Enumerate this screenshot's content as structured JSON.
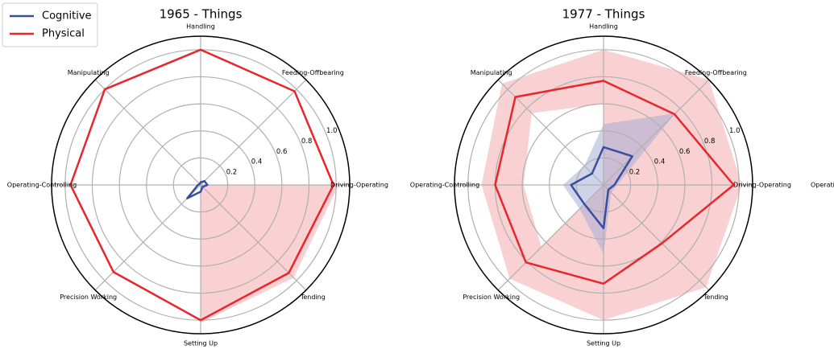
{
  "chart_data": [
    {
      "type": "radar",
      "title": "1965 - Things",
      "categories": [
        "Driving-Operating",
        "Feeding-Offbearing",
        "Handling",
        "Manipulating",
        "Operating-Controlling",
        "Precision Working",
        "Setting Up",
        "Tending"
      ],
      "series": [
        {
          "name": "Cognitive",
          "color": "#3a4ea0",
          "values": [
            0.05,
            0.04,
            0.02,
            0.01,
            0.02,
            0.14,
            0.05,
            0.02
          ]
        },
        {
          "name": "Physical",
          "color": "#e8262b",
          "values": [
            0.98,
            0.98,
            1.0,
            1.0,
            0.96,
            0.91,
            1.0,
            0.92
          ]
        }
      ],
      "bands": [
        {
          "color": "#f4a3a5",
          "upper": [
            1.02,
            null,
            null,
            null,
            null,
            null,
            1.02,
            0.97
          ],
          "lower": [
            0,
            null,
            null,
            null,
            null,
            null,
            0,
            0
          ]
        }
      ],
      "ylim": [
        0,
        1.1
      ],
      "yticks": [
        0.2,
        0.4,
        0.6,
        0.8,
        {
          "value": 1.0,
          "label": "1.0"
        }
      ],
      "grid": true,
      "legend": "upper left"
    },
    {
      "type": "radar",
      "title": "1977 - Things",
      "categories": [
        "Driving-Operating",
        "Feeding-Offbearing",
        "Handling",
        "Manipulating",
        "Operating-Controlling",
        "Precision Working",
        "Setting Up",
        "Tending"
      ],
      "series": [
        {
          "color": "#3a4ea0",
          "values": [
            0.08,
            0.3,
            0.28,
            0.12,
            0.24,
            0.2,
            0.32,
            0.05
          ]
        },
        {
          "color": "#e8262b",
          "values": [
            0.96,
            0.74,
            0.77,
            0.92,
            0.8,
            0.81,
            0.73,
            0.61
          ]
        }
      ],
      "bands": [
        {
          "color": "#f4a3a5",
          "upper": [
            1.02,
            1.1,
            1.0,
            1.06,
            0.9,
            0.98,
            1.0,
            1.07
          ],
          "lower": [
            0,
            0,
            0.6,
            0.75,
            0.59,
            0.65,
            0,
            0
          ]
        },
        {
          "color": "#9fa8d6",
          "upper": [
            0.1,
            0.75,
            0.45,
            0.2,
            0.3,
            0.25,
            0.51,
            0.08
          ],
          "lower": [
            0,
            0,
            0,
            0,
            0,
            0,
            0,
            0
          ]
        }
      ],
      "ylim": [
        0,
        1.1
      ],
      "yticks": [
        0.2,
        0.4,
        0.6,
        0.8,
        {
          "value": 1.0,
          "label": "1.0"
        }
      ],
      "grid": true
    }
  ]
}
